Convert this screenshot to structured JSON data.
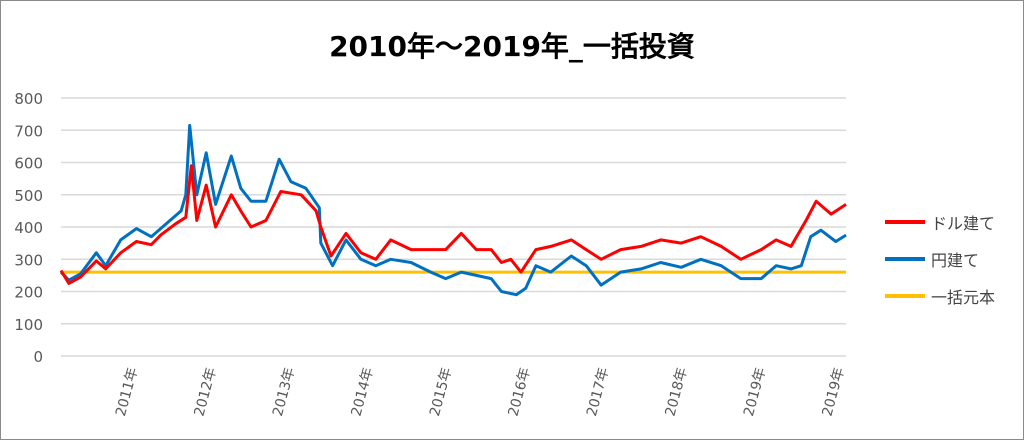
{
  "chart_data": {
    "type": "line",
    "title": "2010年～2019年_一括投資",
    "xlabel": "",
    "ylabel": "",
    "ylim": [
      0,
      800
    ],
    "yticks": [
      0,
      100,
      200,
      300,
      400,
      500,
      600,
      700,
      800
    ],
    "xlim": [
      2010,
      2020
    ],
    "xticks": [
      {
        "x": 2011,
        "label": "2011年"
      },
      {
        "x": 2012,
        "label": "2012年"
      },
      {
        "x": 2013,
        "label": "2013年"
      },
      {
        "x": 2014,
        "label": "2014年"
      },
      {
        "x": 2015,
        "label": "2015年"
      },
      {
        "x": 2016,
        "label": "2016年"
      },
      {
        "x": 2017,
        "label": "2017年"
      },
      {
        "x": 2018,
        "label": "2018年"
      },
      {
        "x": 2019,
        "label": "2019年"
      },
      {
        "x": 2020,
        "label": "2019年"
      }
    ],
    "grid": true,
    "legend_position": "right",
    "series": [
      {
        "name": "ドル建て",
        "color": "#ff0000",
        "points": [
          [
            2010.0,
            265
          ],
          [
            2010.1,
            225
          ],
          [
            2010.25,
            245
          ],
          [
            2010.45,
            295
          ],
          [
            2010.57,
            270
          ],
          [
            2010.76,
            320
          ],
          [
            2010.96,
            355
          ],
          [
            2011.15,
            345
          ],
          [
            2011.27,
            375
          ],
          [
            2011.46,
            410
          ],
          [
            2011.59,
            430
          ],
          [
            2011.66,
            590
          ],
          [
            2011.73,
            420
          ],
          [
            2011.85,
            530
          ],
          [
            2011.97,
            400
          ],
          [
            2012.17,
            500
          ],
          [
            2012.29,
            450
          ],
          [
            2012.42,
            400
          ],
          [
            2012.61,
            420
          ],
          [
            2012.8,
            510
          ],
          [
            2013.06,
            500
          ],
          [
            2013.25,
            450
          ],
          [
            2013.31,
            400
          ],
          [
            2013.44,
            310
          ],
          [
            2013.63,
            380
          ],
          [
            2013.82,
            320
          ],
          [
            2014.01,
            300
          ],
          [
            2014.2,
            360
          ],
          [
            2014.46,
            330
          ],
          [
            2014.71,
            330
          ],
          [
            2014.9,
            330
          ],
          [
            2015.1,
            380
          ],
          [
            2015.29,
            330
          ],
          [
            2015.48,
            330
          ],
          [
            2015.61,
            290
          ],
          [
            2015.73,
            300
          ],
          [
            2015.86,
            260
          ],
          [
            2016.05,
            330
          ],
          [
            2016.24,
            340
          ],
          [
            2016.5,
            360
          ],
          [
            2016.69,
            330
          ],
          [
            2016.88,
            300
          ],
          [
            2017.13,
            330
          ],
          [
            2017.39,
            340
          ],
          [
            2017.64,
            360
          ],
          [
            2017.9,
            350
          ],
          [
            2018.15,
            370
          ],
          [
            2018.41,
            340
          ],
          [
            2018.66,
            300
          ],
          [
            2018.92,
            330
          ],
          [
            2019.11,
            360
          ],
          [
            2019.3,
            340
          ],
          [
            2019.49,
            420
          ],
          [
            2019.62,
            480
          ],
          [
            2019.81,
            440
          ],
          [
            2020.0,
            470
          ]
        ]
      },
      {
        "name": "円建て",
        "color": "#0070c0",
        "points": [
          [
            2010.0,
            260
          ],
          [
            2010.1,
            235
          ],
          [
            2010.25,
            255
          ],
          [
            2010.45,
            320
          ],
          [
            2010.57,
            280
          ],
          [
            2010.76,
            360
          ],
          [
            2010.96,
            395
          ],
          [
            2011.15,
            370
          ],
          [
            2011.34,
            410
          ],
          [
            2011.53,
            450
          ],
          [
            2011.59,
            500
          ],
          [
            2011.64,
            715
          ],
          [
            2011.73,
            500
          ],
          [
            2011.85,
            630
          ],
          [
            2011.97,
            470
          ],
          [
            2012.17,
            620
          ],
          [
            2012.29,
            520
          ],
          [
            2012.42,
            480
          ],
          [
            2012.61,
            480
          ],
          [
            2012.78,
            610
          ],
          [
            2012.93,
            540
          ],
          [
            2013.12,
            520
          ],
          [
            2013.29,
            460
          ],
          [
            2013.31,
            350
          ],
          [
            2013.46,
            280
          ],
          [
            2013.63,
            360
          ],
          [
            2013.82,
            300
          ],
          [
            2014.01,
            280
          ],
          [
            2014.2,
            300
          ],
          [
            2014.46,
            290
          ],
          [
            2014.71,
            260
          ],
          [
            2014.9,
            240
          ],
          [
            2015.1,
            260
          ],
          [
            2015.29,
            250
          ],
          [
            2015.48,
            240
          ],
          [
            2015.61,
            200
          ],
          [
            2015.8,
            190
          ],
          [
            2015.92,
            210
          ],
          [
            2016.05,
            280
          ],
          [
            2016.24,
            260
          ],
          [
            2016.5,
            310
          ],
          [
            2016.69,
            280
          ],
          [
            2016.88,
            220
          ],
          [
            2017.13,
            260
          ],
          [
            2017.39,
            270
          ],
          [
            2017.64,
            290
          ],
          [
            2017.9,
            275
          ],
          [
            2018.15,
            300
          ],
          [
            2018.41,
            280
          ],
          [
            2018.66,
            240
          ],
          [
            2018.92,
            240
          ],
          [
            2019.11,
            280
          ],
          [
            2019.3,
            270
          ],
          [
            2019.43,
            280
          ],
          [
            2019.55,
            370
          ],
          [
            2019.68,
            390
          ],
          [
            2019.87,
            355
          ],
          [
            2020.0,
            375
          ]
        ]
      },
      {
        "name": "一括元本",
        "color": "#ffc000",
        "points": [
          [
            2010.0,
            260
          ],
          [
            2020.0,
            260
          ]
        ]
      }
    ]
  }
}
